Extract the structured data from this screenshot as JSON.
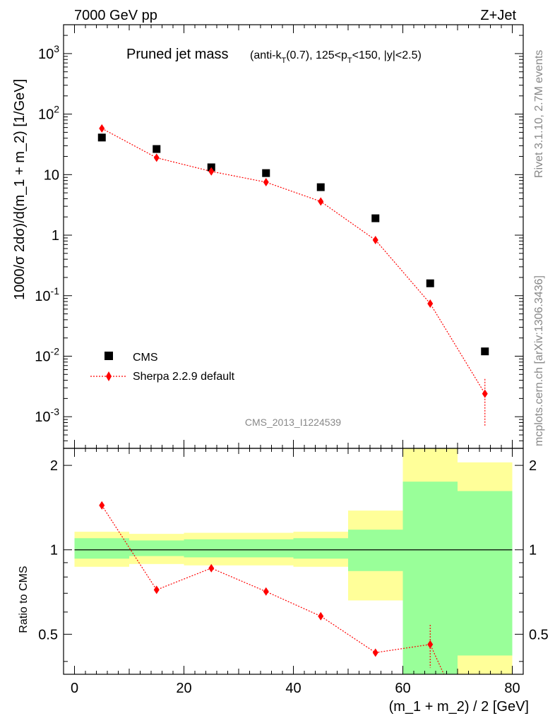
{
  "header": {
    "left": "7000 GeV pp",
    "right": "Z+Jet"
  },
  "side": {
    "rivet": "Rivet 3.1.10,  2.7M events",
    "mcplots": "mcplots.cern.ch [arXiv:1306.3436]"
  },
  "chart_data": [
    {
      "type": "scatter",
      "title": "Pruned jet mass",
      "subtitle_parts": [
        "(anti-k",
        "T",
        "(0.7), 125<p",
        "T",
        "<150, |y|<2.5)"
      ],
      "ylabel": "1000/σ 2dσ)/d(m_1 + m_2) [1/GeV]",
      "yscale": "log",
      "ylim": [
        0.0003,
        3000
      ],
      "xlim": [
        -2,
        82
      ],
      "yticks": [
        {
          "v": 0.001,
          "base": "10",
          "exp": "-3"
        },
        {
          "v": 0.01,
          "base": "10",
          "exp": "-2"
        },
        {
          "v": 0.1,
          "base": "10",
          "exp": "-1"
        },
        {
          "v": 1,
          "base": "1",
          "exp": ""
        },
        {
          "v": 10,
          "base": "10",
          "exp": ""
        },
        {
          "v": 100,
          "base": "10",
          "exp": "2"
        },
        {
          "v": 1000,
          "base": "10",
          "exp": "3"
        }
      ],
      "watermark": "CMS_2013_I1224539",
      "legend_position": "bottom-left",
      "series": [
        {
          "name": "CMS",
          "marker": "square",
          "color": "#000000",
          "x": [
            5,
            15,
            25,
            35,
            45,
            55,
            65,
            75
          ],
          "y": [
            41,
            26.5,
            13.2,
            10.6,
            6.2,
            1.9,
            0.16,
            0.012
          ]
        },
        {
          "name": "Sherpa 2.2.9 default",
          "marker": "diamond",
          "line": "dotted",
          "color": "#ff0000",
          "x": [
            5,
            15,
            25,
            35,
            45,
            55,
            65,
            75
          ],
          "y": [
            58,
            19,
            11.3,
            7.5,
            3.6,
            0.83,
            0.074,
            0.0024
          ],
          "err_low": [
            null,
            null,
            null,
            null,
            null,
            null,
            null,
            0.00068
          ],
          "err_high": [
            null,
            null,
            null,
            null,
            null,
            null,
            null,
            0.0042
          ]
        }
      ]
    },
    {
      "type": "line",
      "ylabel": "Ratio to CMS",
      "xlabel": "(m_1 + m_2) / 2 [GeV]",
      "xlim": [
        -2,
        82
      ],
      "ylim": [
        0.36,
        2.3
      ],
      "yscale": "log",
      "xticks": [
        0,
        20,
        40,
        60,
        80
      ],
      "yticks": [
        0.5,
        1,
        2
      ],
      "reference_line": 1,
      "bands": [
        {
          "x0": 0,
          "x1": 10,
          "outer": [
            0.87,
            1.16
          ],
          "inner": [
            0.93,
            1.1
          ]
        },
        {
          "x0": 10,
          "x1": 20,
          "outer": [
            0.89,
            1.14
          ],
          "inner": [
            0.95,
            1.08
          ]
        },
        {
          "x0": 20,
          "x1": 30,
          "outer": [
            0.88,
            1.15
          ],
          "inner": [
            0.94,
            1.09
          ]
        },
        {
          "x0": 30,
          "x1": 40,
          "outer": [
            0.88,
            1.15
          ],
          "inner": [
            0.94,
            1.09
          ]
        },
        {
          "x0": 40,
          "x1": 50,
          "outer": [
            0.87,
            1.16
          ],
          "inner": [
            0.93,
            1.1
          ]
        },
        {
          "x0": 50,
          "x1": 60,
          "outer": [
            0.66,
            1.38
          ],
          "inner": [
            0.84,
            1.18
          ]
        },
        {
          "x0": 60,
          "x1": 70,
          "outer": [
            0.36,
            2.3
          ],
          "inner": [
            0.36,
            1.75
          ]
        },
        {
          "x0": 70,
          "x1": 80,
          "outer": [
            0.36,
            2.05
          ],
          "inner": [
            0.42,
            1.62
          ]
        }
      ],
      "band_colors": {
        "outer": "#ffff99",
        "inner": "#99ff99"
      },
      "series": [
        {
          "name": "Sherpa 2.2.9 default",
          "color": "#ff0000",
          "x": [
            5,
            15,
            25,
            35,
            45,
            55,
            65
          ],
          "y": [
            1.44,
            0.72,
            0.86,
            0.71,
            0.58,
            0.43,
            0.46
          ],
          "err_low": [
            null,
            null,
            null,
            null,
            null,
            null,
            0.38
          ],
          "err_high": [
            null,
            null,
            null,
            null,
            null,
            null,
            0.54
          ],
          "tail_to": {
            "x": 67.5,
            "y": 0.36
          }
        }
      ]
    }
  ]
}
